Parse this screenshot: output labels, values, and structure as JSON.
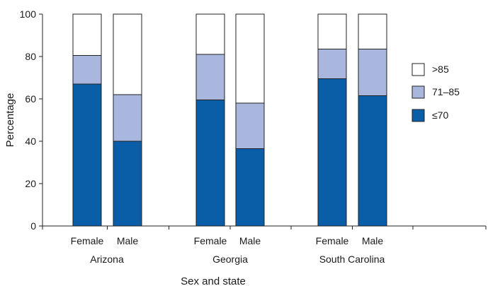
{
  "chart_data": {
    "type": "bar",
    "stacked": true,
    "xlabel": "Sex and state",
    "ylabel": "Percentage",
    "ylim": [
      0,
      100
    ],
    "yticks": [
      0,
      20,
      40,
      60,
      80,
      100
    ],
    "grid": false,
    "legend_position": "right",
    "groups": [
      {
        "label": "Arizona",
        "categories": [
          "Female",
          "Male"
        ]
      },
      {
        "label": "Georgia",
        "categories": [
          "Female",
          "Male"
        ]
      },
      {
        "label": "South Carolina",
        "categories": [
          "Female",
          "Male"
        ]
      }
    ],
    "categories": [
      "Female",
      "Male",
      "Female",
      "Male",
      "Female",
      "Male"
    ],
    "series": [
      {
        "name": "≤70",
        "color": "#0a5ea8",
        "values": [
          67,
          40,
          59.5,
          36.5,
          69.5,
          61.5
        ]
      },
      {
        "name": "71–85",
        "color": "#a9b6de",
        "values": [
          13.5,
          22,
          21.5,
          21.5,
          14,
          22
        ]
      },
      {
        "name": ">85",
        "color": "#ffffff",
        "values": [
          19.5,
          38,
          19,
          42,
          16.5,
          16.5
        ]
      }
    ],
    "legend_order": [
      ">85",
      "71–85",
      "≤70"
    ]
  }
}
